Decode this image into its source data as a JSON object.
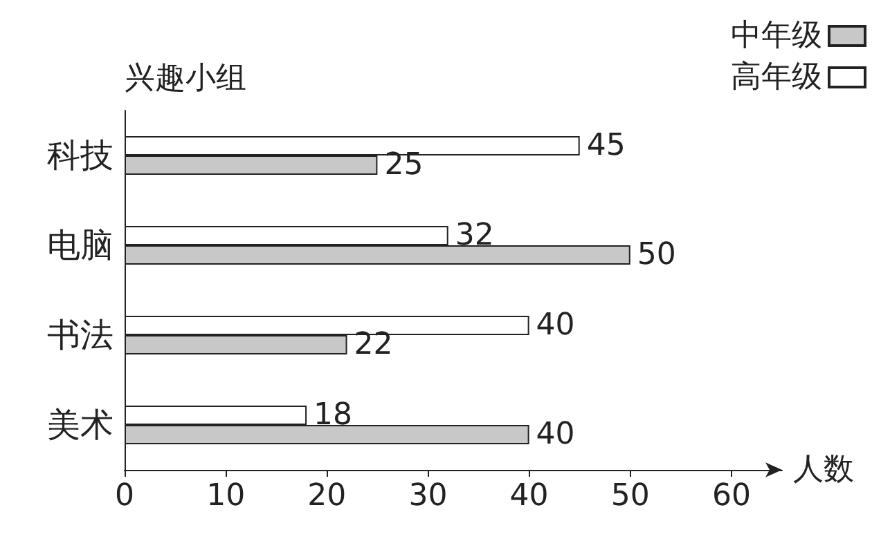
{
  "chart_data": {
    "type": "bar",
    "orientation": "horizontal",
    "xlabel": "人数",
    "ylabel": "兴趣小组",
    "categories": [
      "科技",
      "电脑",
      "书法",
      "美术"
    ],
    "series": [
      {
        "name": "中年级",
        "color": "#c8c8c8",
        "values": [
          25,
          50,
          22,
          40
        ]
      },
      {
        "name": "高年级",
        "color": "#ffffff",
        "values": [
          45,
          32,
          40,
          18
        ]
      }
    ],
    "xlim": [
      0,
      65
    ],
    "xticks": [
      0,
      10,
      20,
      30,
      40,
      50,
      60
    ],
    "data_labels": true,
    "grid": false,
    "legend": "top right"
  }
}
